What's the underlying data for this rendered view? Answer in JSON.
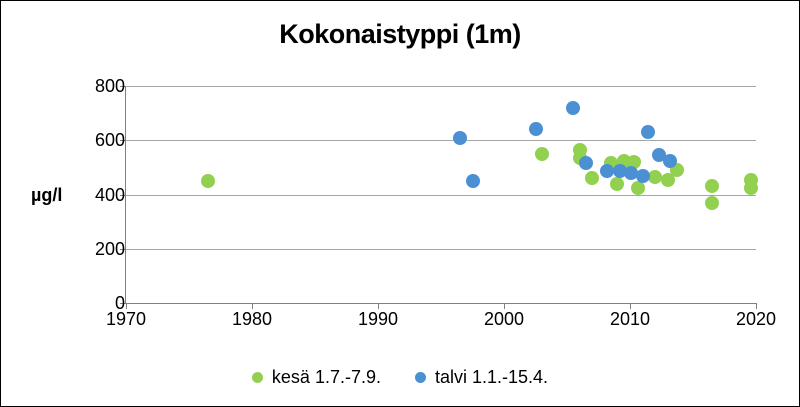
{
  "window": {
    "background": "#ffffff",
    "border_color": "#000000"
  },
  "chart_data": {
    "type": "scatter",
    "title": "Kokonaistyppi (1m)",
    "xlabel": "",
    "ylabel": "µg/l",
    "xlim": [
      1970,
      2020
    ],
    "ylim": [
      0,
      800
    ],
    "xticks": [
      1970,
      1980,
      1990,
      2000,
      2010,
      2020
    ],
    "yticks": [
      0,
      200,
      400,
      600,
      800
    ],
    "grid": true,
    "grid_color": "#a6a6a6",
    "axis_color": "#808080",
    "legend_position": "bottom",
    "series": [
      {
        "name": "kesä 1.7.-7.9.",
        "color": "#92d050",
        "points": [
          [
            1976.5,
            450
          ],
          [
            2003.0,
            550
          ],
          [
            2006.0,
            565
          ],
          [
            2006.0,
            535
          ],
          [
            2007.0,
            460
          ],
          [
            2008.5,
            515
          ],
          [
            2009.0,
            440
          ],
          [
            2009.5,
            525
          ],
          [
            2010.3,
            520
          ],
          [
            2010.6,
            425
          ],
          [
            2012.0,
            465
          ],
          [
            2013.0,
            455
          ],
          [
            2013.7,
            490
          ],
          [
            2016.5,
            430
          ],
          [
            2016.5,
            370
          ],
          [
            2019.6,
            455
          ],
          [
            2019.6,
            425
          ]
        ]
      },
      {
        "name": "talvi 1.1.-15.4.",
        "color": "#4a90d2",
        "points": [
          [
            1996.5,
            610
          ],
          [
            1997.5,
            450
          ],
          [
            2002.5,
            640
          ],
          [
            2005.5,
            720
          ],
          [
            2006.5,
            515
          ],
          [
            2008.2,
            485
          ],
          [
            2009.2,
            485
          ],
          [
            2010.1,
            480
          ],
          [
            2011.0,
            470
          ],
          [
            2011.4,
            630
          ],
          [
            2012.3,
            545
          ],
          [
            2013.2,
            525
          ]
        ]
      }
    ]
  }
}
